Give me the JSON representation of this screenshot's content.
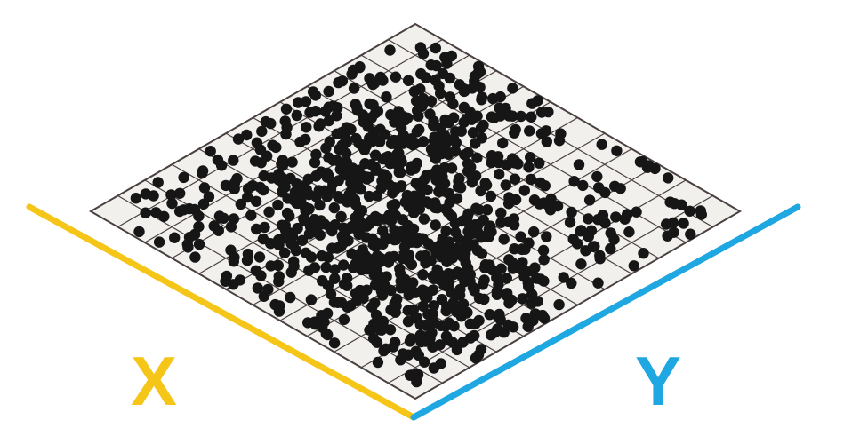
{
  "diagram": {
    "x_axis": {
      "label": "X",
      "color": "#F5C518"
    },
    "y_axis": {
      "label": "Y",
      "color": "#1EA7E1"
    },
    "grid": {
      "rows": 12,
      "cols": 12,
      "cell_fill": "#F2F0ED",
      "line_color": "#4A4040"
    },
    "points": {
      "count": 1000,
      "color": "#161616"
    }
  }
}
